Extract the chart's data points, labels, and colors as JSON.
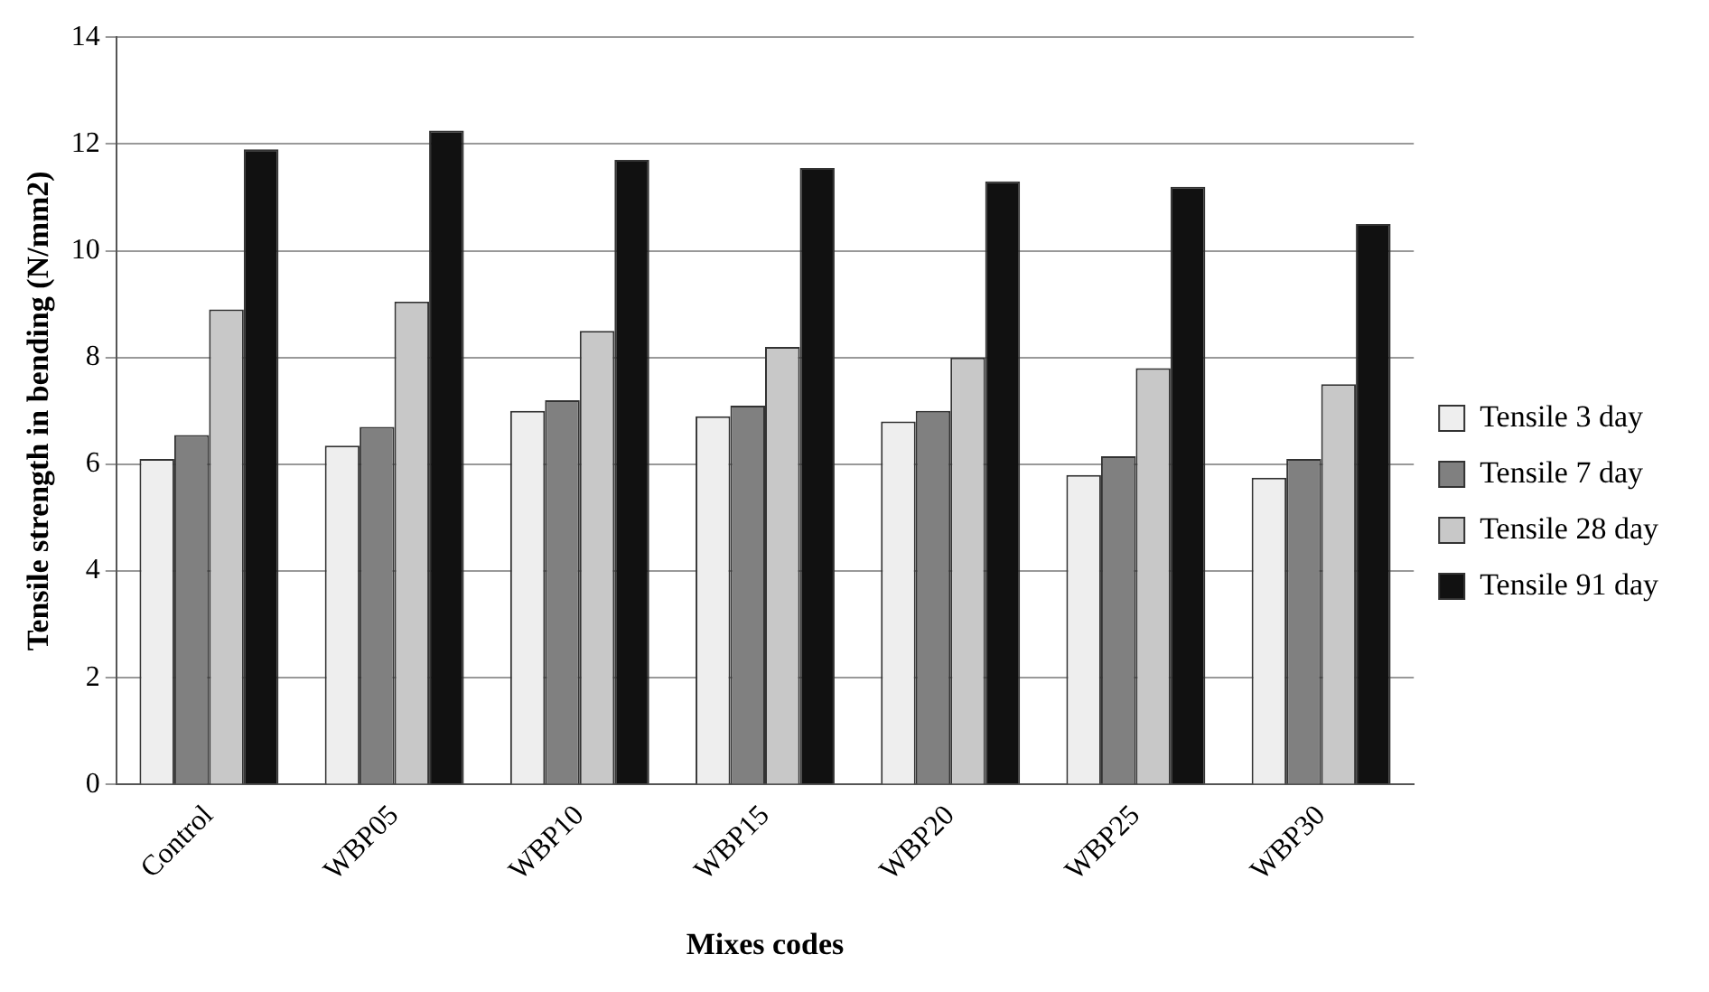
{
  "chart_data": {
    "type": "bar",
    "xlabel": "Mixes codes",
    "ylabel": "Tensile strength in bending (N/mm2)",
    "categories": [
      "Control",
      "WBP05",
      "WBP10",
      "WBP15",
      "WBP20",
      "WBP25",
      "WBP30"
    ],
    "series": [
      {
        "name": "Tensile 3 day",
        "color": "#eeeeee",
        "values": [
          6.1,
          6.35,
          7.0,
          6.9,
          6.8,
          5.8,
          5.75
        ]
      },
      {
        "name": "Tensile 7 day",
        "color": "#808080",
        "values": [
          6.55,
          6.7,
          7.2,
          7.1,
          7.0,
          6.15,
          6.1
        ]
      },
      {
        "name": "Tensile 28 day",
        "color": "#c8c8c8",
        "values": [
          8.9,
          9.05,
          8.5,
          8.2,
          8.0,
          7.8,
          7.5
        ]
      },
      {
        "name": "Tensile 91 day",
        "color": "#111111",
        "values": [
          11.9,
          12.25,
          11.7,
          11.55,
          11.3,
          11.2,
          10.5
        ]
      }
    ],
    "ylim": [
      0,
      14
    ],
    "yticks": [
      0,
      2,
      4,
      6,
      8,
      10,
      12,
      14
    ],
    "grid": "y",
    "legend": "right"
  }
}
